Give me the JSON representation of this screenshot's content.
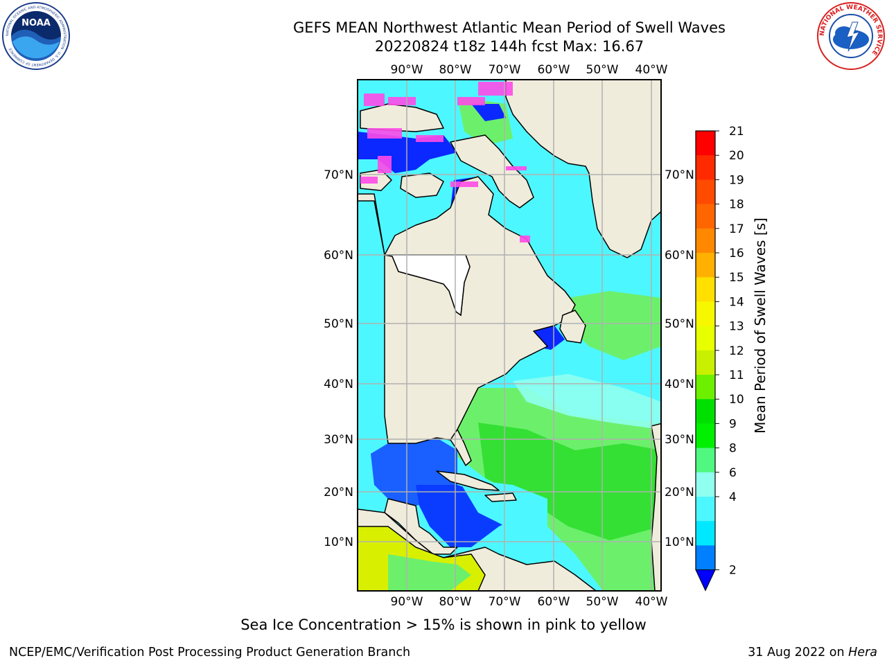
{
  "header": {
    "title_line1": "GEFS MEAN Northwest Atlantic Mean Period of Swell Waves",
    "title_line2": "20220824 t18z 144h fcst   Max: 16.67"
  },
  "logos": {
    "noaa_text": "NOAA",
    "noaa_ring": "NATIONAL OCEANIC AND ATMOSPHERIC ADMINISTRATION · U.S. DEPARTMENT OF COMMERCE",
    "nws_ring": "NATIONAL WEATHER SERVICE"
  },
  "map": {
    "lon_labels": [
      "90°W",
      "80°W",
      "70°W",
      "60°W",
      "50°W",
      "40°W"
    ],
    "lat_labels": [
      "70°N",
      "60°N",
      "50°N",
      "40°N",
      "30°N",
      "20°N",
      "10°N"
    ],
    "land_color": "#efecdc",
    "ocean_color": "#4df7ff",
    "grid_color": "#b0b0b0"
  },
  "colorbar": {
    "label": "Mean Period of Swell Waves [s]",
    "ticks": [
      "21",
      "20",
      "19",
      "18",
      "17",
      "16",
      "15",
      "14",
      "13",
      "12",
      "11",
      "10",
      "9",
      "8",
      "6",
      "4",
      "2"
    ],
    "colors": [
      "#ff0000",
      "#ff2a00",
      "#ff4b00",
      "#ff6600",
      "#ff8800",
      "#ffb000",
      "#ffe000",
      "#f7f700",
      "#e8ff00",
      "#c8f000",
      "#6cf000",
      "#00e000",
      "#00f000",
      "#50f880",
      "#90fff0",
      "#4df7ff",
      "#00e8ff",
      "#007fff"
    ],
    "extend_color": "#0000ff"
  },
  "caption": "Sea Ice Concentration > 15% is shown in pink to yellow",
  "footer": {
    "left": "NCEP/EMC/Verification Post Processing Product Generation Branch",
    "date": "31 Aug 2022 on ",
    "host": "Hera"
  }
}
